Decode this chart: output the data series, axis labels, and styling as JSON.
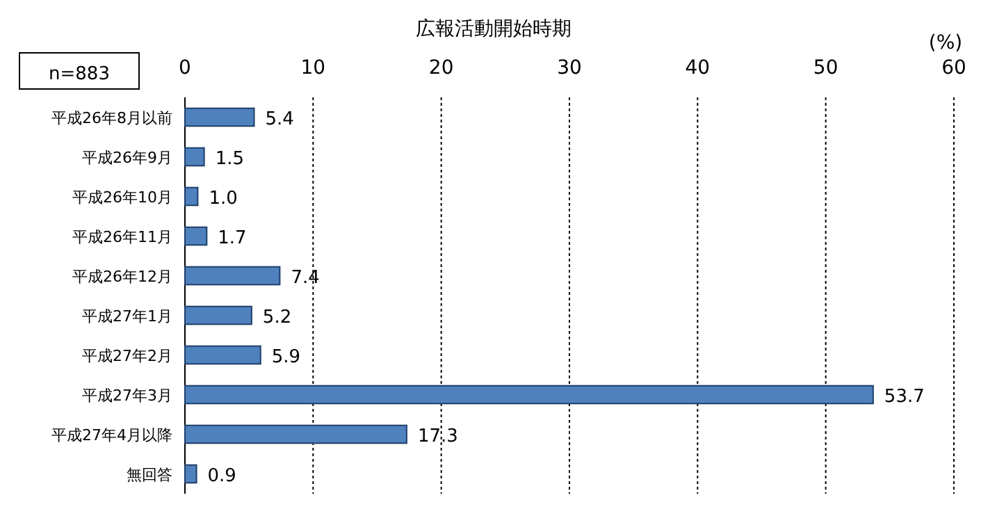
{
  "chart_data": {
    "type": "bar",
    "orientation": "horizontal",
    "title": "広報活動開始時期",
    "xlabel": "(%)",
    "annotations": [
      "n=883"
    ],
    "categories": [
      "平成26年8月以前",
      "平成26年9月",
      "平成26年10月",
      "平成26年11月",
      "平成26年12月",
      "平成27年1月",
      "平成27年2月",
      "平成27年3月",
      "平成27年4月以降",
      "無回答"
    ],
    "values": [
      5.4,
      1.5,
      1.0,
      1.7,
      7.4,
      5.2,
      5.9,
      53.7,
      17.3,
      0.9
    ],
    "value_labels": [
      "5.4",
      "1.5",
      "1.0",
      "1.7",
      "7.4",
      "5.2",
      "5.9",
      "53.7",
      "17.3",
      "0.9"
    ],
    "color": "#4f81bd",
    "xlim": [
      0,
      60
    ],
    "xticks": [
      0,
      10,
      20,
      30,
      40,
      50,
      60
    ],
    "grid": "x"
  }
}
